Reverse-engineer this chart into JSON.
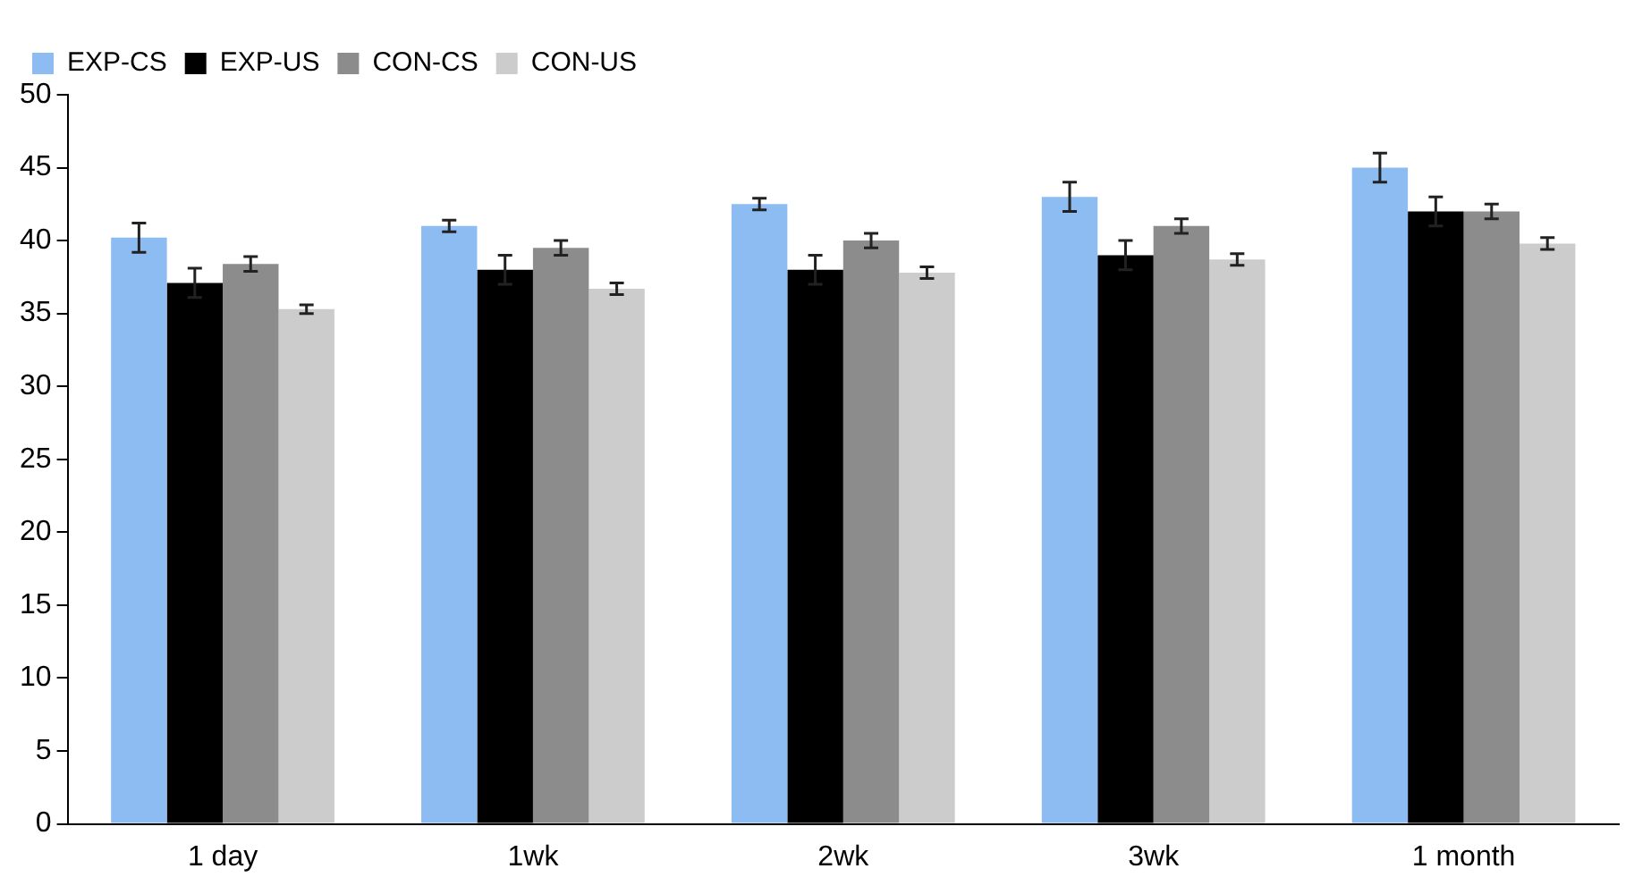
{
  "chart_data": {
    "type": "bar",
    "categories": [
      "1 day",
      "1wk",
      "2wk",
      "3wk",
      "1 month"
    ],
    "series": [
      {
        "name": "EXP-CS",
        "color": "#8dbcf2",
        "values": [
          40.2,
          41,
          42.5,
          43,
          45
        ],
        "errors": [
          1,
          0.4,
          0.4,
          1,
          1
        ]
      },
      {
        "name": "EXP-US",
        "color": "#000000",
        "values": [
          37.1,
          38,
          38,
          39,
          42
        ],
        "errors": [
          1,
          1,
          1,
          1,
          1
        ]
      },
      {
        "name": "CON-CS",
        "color": "#8c8c8c",
        "values": [
          38.4,
          39.5,
          40,
          41,
          42
        ],
        "errors": [
          0.5,
          0.5,
          0.5,
          0.5,
          0.5
        ]
      },
      {
        "name": "CON-US",
        "color": "#cccccc",
        "values": [
          35.3,
          36.7,
          37.8,
          38.7,
          39.8
        ],
        "errors": [
          0.3,
          0.4,
          0.4,
          0.4,
          0.4
        ]
      }
    ],
    "ylim": [
      0,
      50
    ],
    "yticks": [
      0,
      5,
      10,
      15,
      20,
      25,
      30,
      35,
      40,
      45,
      50
    ],
    "grid": false,
    "legend": "top left"
  }
}
